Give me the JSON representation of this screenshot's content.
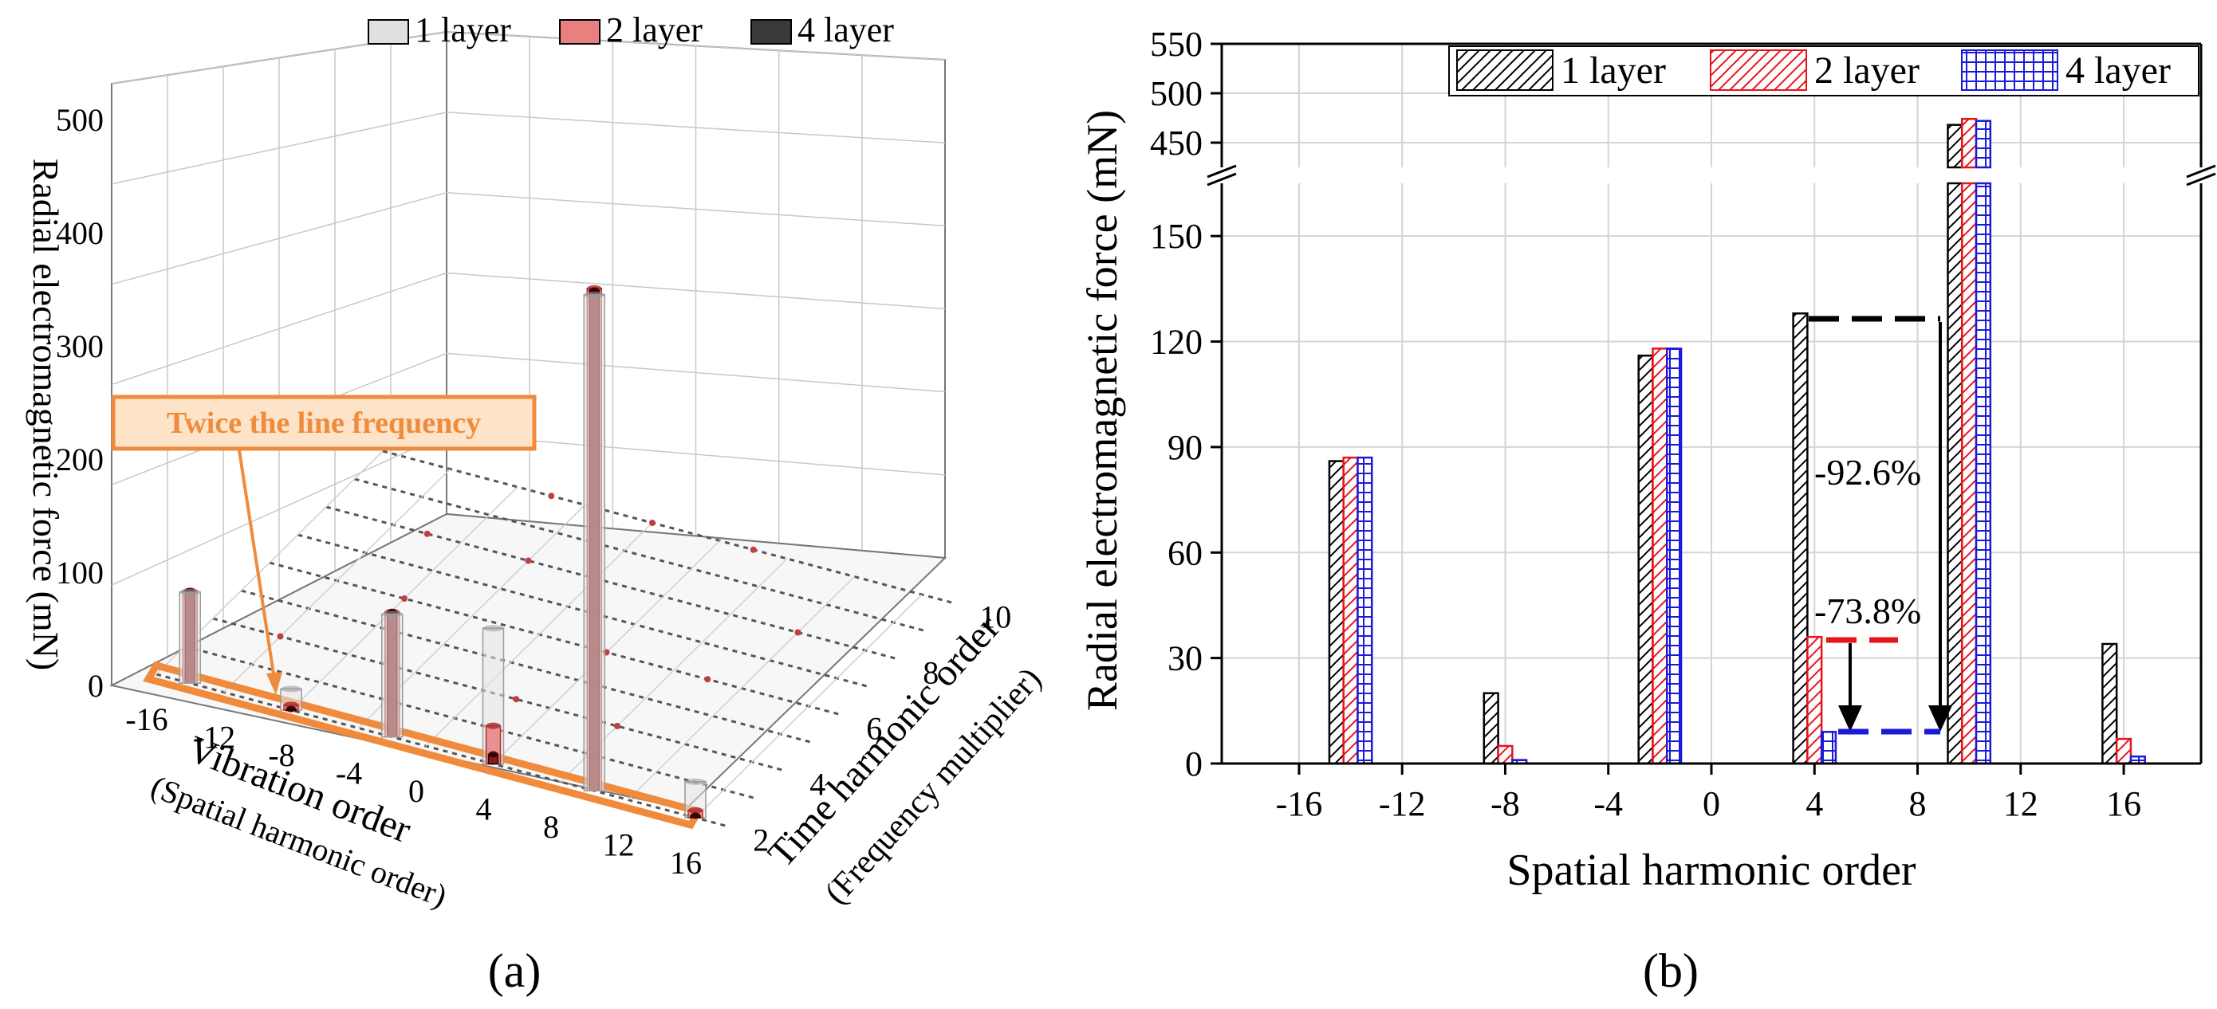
{
  "figure": {
    "panel_a_label": "(a)",
    "panel_b_label": "(b)"
  },
  "chart_data": [
    {
      "panel": "a",
      "type": "bar3d",
      "ylabel": "Radial electromagnetic force (mN)",
      "xlabel": "Vibration order",
      "xlabel_sub": "(Spatial harmonic order)",
      "zlabel": "Time harmonic order",
      "zlabel_sub": "(Frequency multiplier)",
      "y_ticks": [
        0,
        100,
        200,
        300,
        400,
        500
      ],
      "x_ticks": [
        "-16",
        "-12",
        "-8",
        "-4",
        "0",
        "4",
        "8",
        "12",
        "16"
      ],
      "z_ticks": [
        "2",
        "4",
        "6",
        "8",
        "10"
      ],
      "legend": [
        "1 layer",
        "2 layer",
        "4 layer"
      ],
      "annotation": "Twice the line frequency",
      "bars": [
        {
          "spatial": -14,
          "time": 2,
          "values": [
            86,
            87,
            87
          ]
        },
        {
          "spatial": -8,
          "time": 2,
          "values": [
            20,
            5,
            1
          ]
        },
        {
          "spatial": -2,
          "time": 2,
          "values": [
            116,
            118,
            118
          ]
        },
        {
          "spatial": 4,
          "time": 2,
          "values": [
            128,
            36,
            9
          ]
        },
        {
          "spatial": 10,
          "time": 2,
          "values": [
            468,
            474,
            472
          ]
        },
        {
          "spatial": 16,
          "time": 2,
          "values": [
            34,
            7,
            2
          ]
        }
      ]
    },
    {
      "panel": "b",
      "type": "bar",
      "ylabel": "Radial electromagnetic force (mN)",
      "xlabel": "Spatial harmonic order",
      "x_ticks": [
        "-16",
        "-12",
        "-8",
        "-4",
        "0",
        "4",
        "8",
        "12",
        "16"
      ],
      "y_ticks_lower": [
        "0",
        "30",
        "60",
        "90",
        "120",
        "150"
      ],
      "y_ticks_upper": [
        "450",
        "500",
        "550"
      ],
      "ylim_lower": [
        0,
        165
      ],
      "ylim_upper": [
        425,
        550
      ],
      "xlim": [
        -19,
        19
      ],
      "categories": [
        -14,
        -8,
        -2,
        4,
        10,
        16
      ],
      "series": [
        {
          "name": "1 layer",
          "color": "#000000",
          "values": [
            86,
            20,
            116,
            128,
            468,
            34
          ]
        },
        {
          "name": "2 layer",
          "color": "#e8141c",
          "values": [
            87,
            5,
            118,
            36,
            474,
            7
          ]
        },
        {
          "name": "4 layer",
          "color": "#1a1ad8",
          "values": [
            87,
            1,
            118,
            9,
            472,
            2
          ]
        }
      ],
      "annotations": {
        "reduction_1": "-92.6%",
        "reduction_2": "-73.8%"
      }
    }
  ]
}
